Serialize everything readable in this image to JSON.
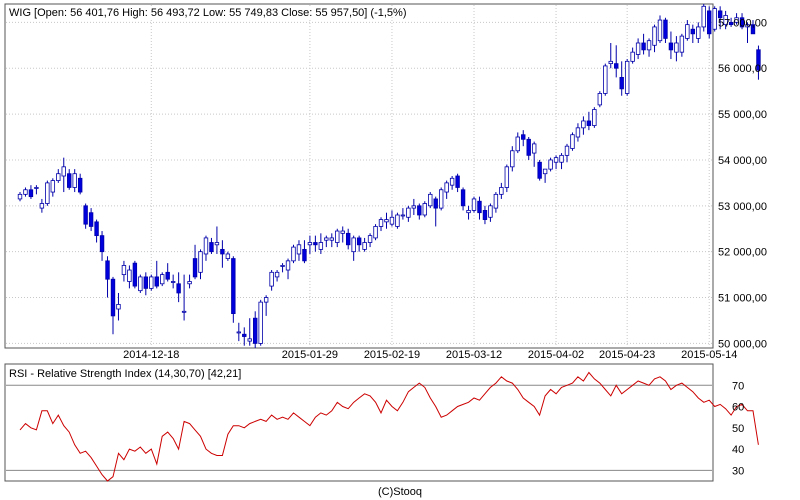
{
  "chart_data": [
    {
      "type": "candlestick",
      "title": "WIG [Open: 56 401,76  High: 56 493,72  Low: 55 749,83  Close: 55 957,50]  (-1,5%)",
      "ylim": [
        49900,
        57400
      ],
      "yticks": [
        50000,
        51000,
        52000,
        53000,
        54000,
        55000,
        56000,
        57000
      ],
      "ytick_labels": [
        "50 000,00",
        "51 000,00",
        "52 000,00",
        "53 000,00",
        "54 000,00",
        "55 000,00",
        "56 000,00",
        "57 000,00"
      ],
      "xtick_labels": [
        {
          "label": "2014-12-18",
          "index": 24
        },
        {
          "label": "2015-01-29",
          "index": 53
        },
        {
          "label": "2015-02-19",
          "index": 68
        },
        {
          "label": "2015-03-12",
          "index": 83
        },
        {
          "label": "2015-04-02",
          "index": 98
        },
        {
          "label": "2015-04-23",
          "index": 111
        },
        {
          "label": "2015-05-14",
          "index": 126
        }
      ],
      "grid": true,
      "up_color": "#ffffff",
      "down_color": "#0000dd",
      "outline_color": "#0000aa",
      "candles": [
        [
          53150,
          53300,
          53100,
          53250
        ],
        [
          53250,
          53400,
          53200,
          53350
        ],
        [
          53350,
          53450,
          53150,
          53200
        ],
        [
          53400,
          53450,
          53250,
          53400
        ],
        [
          52950,
          53150,
          52850,
          53050
        ],
        [
          53050,
          53550,
          53000,
          53500
        ],
        [
          53300,
          53600,
          53200,
          53550
        ],
        [
          53550,
          53800,
          53500,
          53700
        ],
        [
          53650,
          54050,
          53300,
          53850
        ],
        [
          53700,
          53800,
          53350,
          53400
        ],
        [
          53400,
          53800,
          53300,
          53700
        ],
        [
          53600,
          53700,
          53250,
          53300
        ],
        [
          53000,
          53050,
          52500,
          52600
        ],
        [
          52850,
          52950,
          52450,
          52550
        ],
        [
          52650,
          52700,
          52200,
          52350
        ],
        [
          52350,
          52450,
          51800,
          52000
        ],
        [
          51800,
          51900,
          51000,
          51400
        ],
        [
          51400,
          51450,
          50200,
          50600
        ],
        [
          50750,
          51100,
          50500,
          50850
        ],
        [
          51500,
          51800,
          51350,
          51700
        ],
        [
          51350,
          51700,
          51200,
          51600
        ],
        [
          51750,
          51800,
          51200,
          51250
        ],
        [
          51150,
          51500,
          51100,
          51450
        ],
        [
          51450,
          51550,
          51050,
          51200
        ],
        [
          51200,
          51500,
          51150,
          51450
        ],
        [
          51450,
          51800,
          51200,
          51250
        ],
        [
          51300,
          51550,
          51250,
          51500
        ],
        [
          51550,
          51750,
          51350,
          51400
        ],
        [
          51350,
          51500,
          51200,
          51350
        ],
        [
          51300,
          51550,
          50900,
          51100
        ],
        [
          50700,
          51500,
          50500,
          50700
        ],
        [
          51300,
          51500,
          51200,
          51350
        ],
        [
          51850,
          52150,
          51400,
          51450
        ],
        [
          51550,
          52050,
          51400,
          52000
        ],
        [
          51950,
          52350,
          51800,
          52300
        ],
        [
          52200,
          52300,
          51950,
          52000
        ],
        [
          52150,
          52550,
          51950,
          52200
        ],
        [
          52050,
          52250,
          51650,
          51950
        ],
        [
          51850,
          52000,
          51800,
          51950
        ],
        [
          51850,
          51900,
          50450,
          50650
        ],
        [
          50250,
          50450,
          50050,
          50250
        ],
        [
          50200,
          50350,
          49950,
          50150
        ],
        [
          50050,
          50550,
          49950,
          50100
        ],
        [
          50550,
          50700,
          49900,
          50000
        ],
        [
          50000,
          50950,
          49950,
          50900
        ],
        [
          50900,
          51050,
          50600,
          51000
        ],
        [
          51250,
          51600,
          51150,
          51550
        ],
        [
          51450,
          51600,
          51350,
          51550
        ],
        [
          51700,
          51750,
          51550,
          51700
        ],
        [
          51600,
          51850,
          51400,
          51800
        ],
        [
          51800,
          52150,
          51750,
          52100
        ],
        [
          51950,
          52250,
          51800,
          52150
        ],
        [
          52050,
          52250,
          51750,
          51800
        ],
        [
          52150,
          52350,
          51950,
          52200
        ],
        [
          52200,
          52350,
          52000,
          52150
        ],
        [
          52050,
          52400,
          51950,
          52200
        ],
        [
          52250,
          52350,
          52100,
          52300
        ],
        [
          52250,
          52400,
          52100,
          52300
        ],
        [
          52200,
          52500,
          52100,
          52450
        ],
        [
          52400,
          52550,
          52200,
          52450
        ],
        [
          52400,
          52500,
          52050,
          52150
        ],
        [
          52000,
          52350,
          51800,
          52300
        ],
        [
          52300,
          52350,
          52000,
          52150
        ],
        [
          52050,
          52300,
          52000,
          52200
        ],
        [
          52200,
          52400,
          52100,
          52350
        ],
        [
          52300,
          52600,
          52250,
          52550
        ],
        [
          52550,
          52750,
          52450,
          52700
        ],
        [
          52650,
          52850,
          52500,
          52700
        ],
        [
          52600,
          52900,
          52550,
          52750
        ],
        [
          52550,
          52850,
          52500,
          52800
        ],
        [
          52800,
          52950,
          52700,
          52800
        ],
        [
          52750,
          53000,
          52650,
          52950
        ],
        [
          52950,
          53150,
          52800,
          53000
        ],
        [
          53000,
          53050,
          52700,
          52800
        ],
        [
          52800,
          53100,
          52750,
          53050
        ],
        [
          53000,
          53300,
          52950,
          53250
        ],
        [
          53150,
          53200,
          52550,
          52950
        ],
        [
          52950,
          53400,
          52900,
          53350
        ],
        [
          53300,
          53550,
          53150,
          53500
        ],
        [
          53450,
          53650,
          53350,
          53600
        ],
        [
          53650,
          53700,
          53300,
          53400
        ],
        [
          53350,
          53400,
          52900,
          53000
        ],
        [
          52850,
          53000,
          52700,
          52900
        ],
        [
          52900,
          53200,
          52850,
          53150
        ],
        [
          53100,
          53200,
          52700,
          52850
        ],
        [
          52900,
          53000,
          52600,
          52700
        ],
        [
          52750,
          53050,
          52650,
          53000
        ],
        [
          52950,
          53300,
          52850,
          53250
        ],
        [
          53250,
          53500,
          53150,
          53400
        ],
        [
          53400,
          53900,
          53300,
          53850
        ],
        [
          53850,
          54300,
          53750,
          54200
        ],
        [
          54200,
          54600,
          54150,
          54500
        ],
        [
          54550,
          54650,
          54300,
          54450
        ],
        [
          54450,
          54500,
          54000,
          54100
        ],
        [
          54150,
          54400,
          53850,
          54350
        ],
        [
          53950,
          54000,
          53550,
          53600
        ],
        [
          53700,
          53800,
          53500,
          53800
        ],
        [
          53800,
          54050,
          53750,
          54000
        ],
        [
          53950,
          54100,
          53800,
          54050
        ],
        [
          53950,
          54150,
          53800,
          54100
        ],
        [
          54100,
          54350,
          53950,
          54300
        ],
        [
          54250,
          54600,
          54200,
          54550
        ],
        [
          54500,
          54800,
          54400,
          54700
        ],
        [
          54700,
          54950,
          54550,
          54850
        ],
        [
          54850,
          55050,
          54650,
          54750
        ],
        [
          54750,
          55150,
          54700,
          55100
        ],
        [
          55200,
          55500,
          55150,
          55450
        ],
        [
          55450,
          56100,
          55400,
          56050
        ],
        [
          56100,
          56550,
          56000,
          56150
        ],
        [
          56100,
          56500,
          55800,
          56000
        ],
        [
          55800,
          56150,
          55400,
          55550
        ],
        [
          55450,
          56200,
          55400,
          56150
        ],
        [
          56150,
          56450,
          56100,
          56350
        ],
        [
          56300,
          56650,
          56200,
          56550
        ],
        [
          56550,
          56750,
          56300,
          56400
        ],
        [
          56400,
          56650,
          56250,
          56600
        ],
        [
          56500,
          56950,
          56350,
          56900
        ],
        [
          56600,
          57150,
          56550,
          57050
        ],
        [
          57050,
          57100,
          56550,
          56650
        ],
        [
          56550,
          56800,
          56200,
          56400
        ],
        [
          56350,
          56700,
          56150,
          56550
        ],
        [
          56350,
          56750,
          56250,
          56700
        ],
        [
          56650,
          57050,
          56600,
          56950
        ],
        [
          56850,
          56950,
          56550,
          56750
        ],
        [
          56650,
          57000,
          56550,
          56900
        ],
        [
          56900,
          57400,
          56800,
          57350
        ],
        [
          57250,
          57350,
          56650,
          56750
        ],
        [
          56850,
          57350,
          56800,
          57300
        ],
        [
          57250,
          57350,
          56850,
          57100
        ],
        [
          56950,
          57250,
          56850,
          57150
        ],
        [
          57000,
          57100,
          56900,
          56950
        ],
        [
          57000,
          57200,
          56950,
          57100
        ],
        [
          57100,
          57200,
          56850,
          56900
        ],
        [
          56900,
          57000,
          56550,
          56950
        ],
        [
          56950,
          57050,
          56750,
          56750
        ],
        [
          56402,
          56494,
          55750,
          55958
        ]
      ]
    },
    {
      "type": "line",
      "title": "RSI - Relative Strength Index (14,30,70) [42,21]",
      "ylim": [
        25,
        80
      ],
      "yticks": [
        30,
        40,
        50,
        60,
        70
      ],
      "ytick_labels": [
        "30",
        "40",
        "50",
        "60",
        "70"
      ],
      "reference_lines": [
        30,
        70
      ],
      "line_color": "#cc0000",
      "values": [
        49,
        52,
        50,
        49,
        58,
        58,
        52,
        56,
        51,
        48,
        42,
        38,
        39,
        36,
        32,
        28,
        25,
        27,
        38,
        35,
        40,
        39,
        41,
        38,
        40,
        33,
        46,
        48,
        45,
        40,
        53,
        52,
        49,
        46,
        40,
        38,
        37,
        37,
        47,
        51,
        51,
        50,
        52,
        53,
        54,
        53,
        56,
        54,
        55,
        54,
        57,
        55,
        53,
        51,
        55,
        57,
        56,
        58,
        62,
        60,
        59,
        62,
        64,
        66,
        65,
        62,
        57,
        63,
        60,
        58,
        62,
        67,
        69,
        71,
        69,
        64,
        60,
        55,
        56,
        58,
        60,
        61,
        62,
        64,
        63,
        66,
        69,
        71,
        74,
        72,
        71,
        68,
        64,
        62,
        60,
        56,
        65,
        68,
        66,
        69,
        70,
        71,
        74,
        72,
        76,
        73,
        71,
        68,
        65,
        70,
        66,
        68,
        70,
        72,
        71,
        70,
        73,
        74,
        72,
        68,
        70,
        71,
        69,
        67,
        64,
        62,
        63,
        60,
        61,
        59,
        56,
        60,
        61,
        58,
        58,
        42
      ]
    }
  ],
  "footer": {
    "copyright": "(C)Stooq"
  }
}
